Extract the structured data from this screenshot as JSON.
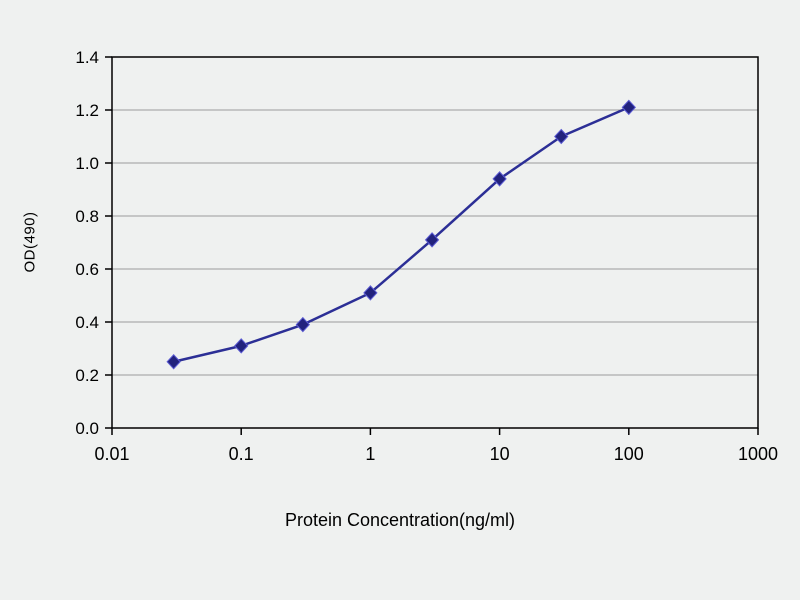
{
  "chart_data": {
    "type": "line",
    "title": "",
    "xlabel": "Protein Concentration(ng/ml)",
    "ylabel": "OD(490)",
    "x_scale": "log",
    "xlim": [
      0.01,
      1000
    ],
    "ylim": [
      0.0,
      1.4
    ],
    "grid": "horizontal",
    "legend": "none",
    "x": [
      0.03,
      0.1,
      0.3,
      1,
      3,
      10,
      30,
      100
    ],
    "y": [
      0.25,
      0.31,
      0.39,
      0.51,
      0.71,
      0.94,
      1.1,
      1.21
    ],
    "xticks": [
      {
        "value": 0.01,
        "label": "0.01"
      },
      {
        "value": 0.1,
        "label": "0.1"
      },
      {
        "value": 1,
        "label": "1"
      },
      {
        "value": 10,
        "label": "10"
      },
      {
        "value": 100,
        "label": "100"
      },
      {
        "value": 1000,
        "label": "1000"
      }
    ],
    "yticks": [
      {
        "value": 0.0,
        "label": "0.0"
      },
      {
        "value": 0.2,
        "label": "0.2"
      },
      {
        "value": 0.4,
        "label": "0.4"
      },
      {
        "value": 0.6,
        "label": "0.6"
      },
      {
        "value": 0.8,
        "label": "0.8"
      },
      {
        "value": 1.0,
        "label": "1.0"
      },
      {
        "value": 1.2,
        "label": "1.2"
      },
      {
        "value": 1.4,
        "label": "1.4"
      }
    ],
    "colors": {
      "line": "#2c2f96",
      "marker": "#22227d",
      "marker_stroke": "#5a5ad2",
      "grid": "#9b9b9b",
      "axis": "#000000",
      "text": "#000000",
      "background": "#eff1f0"
    }
  }
}
